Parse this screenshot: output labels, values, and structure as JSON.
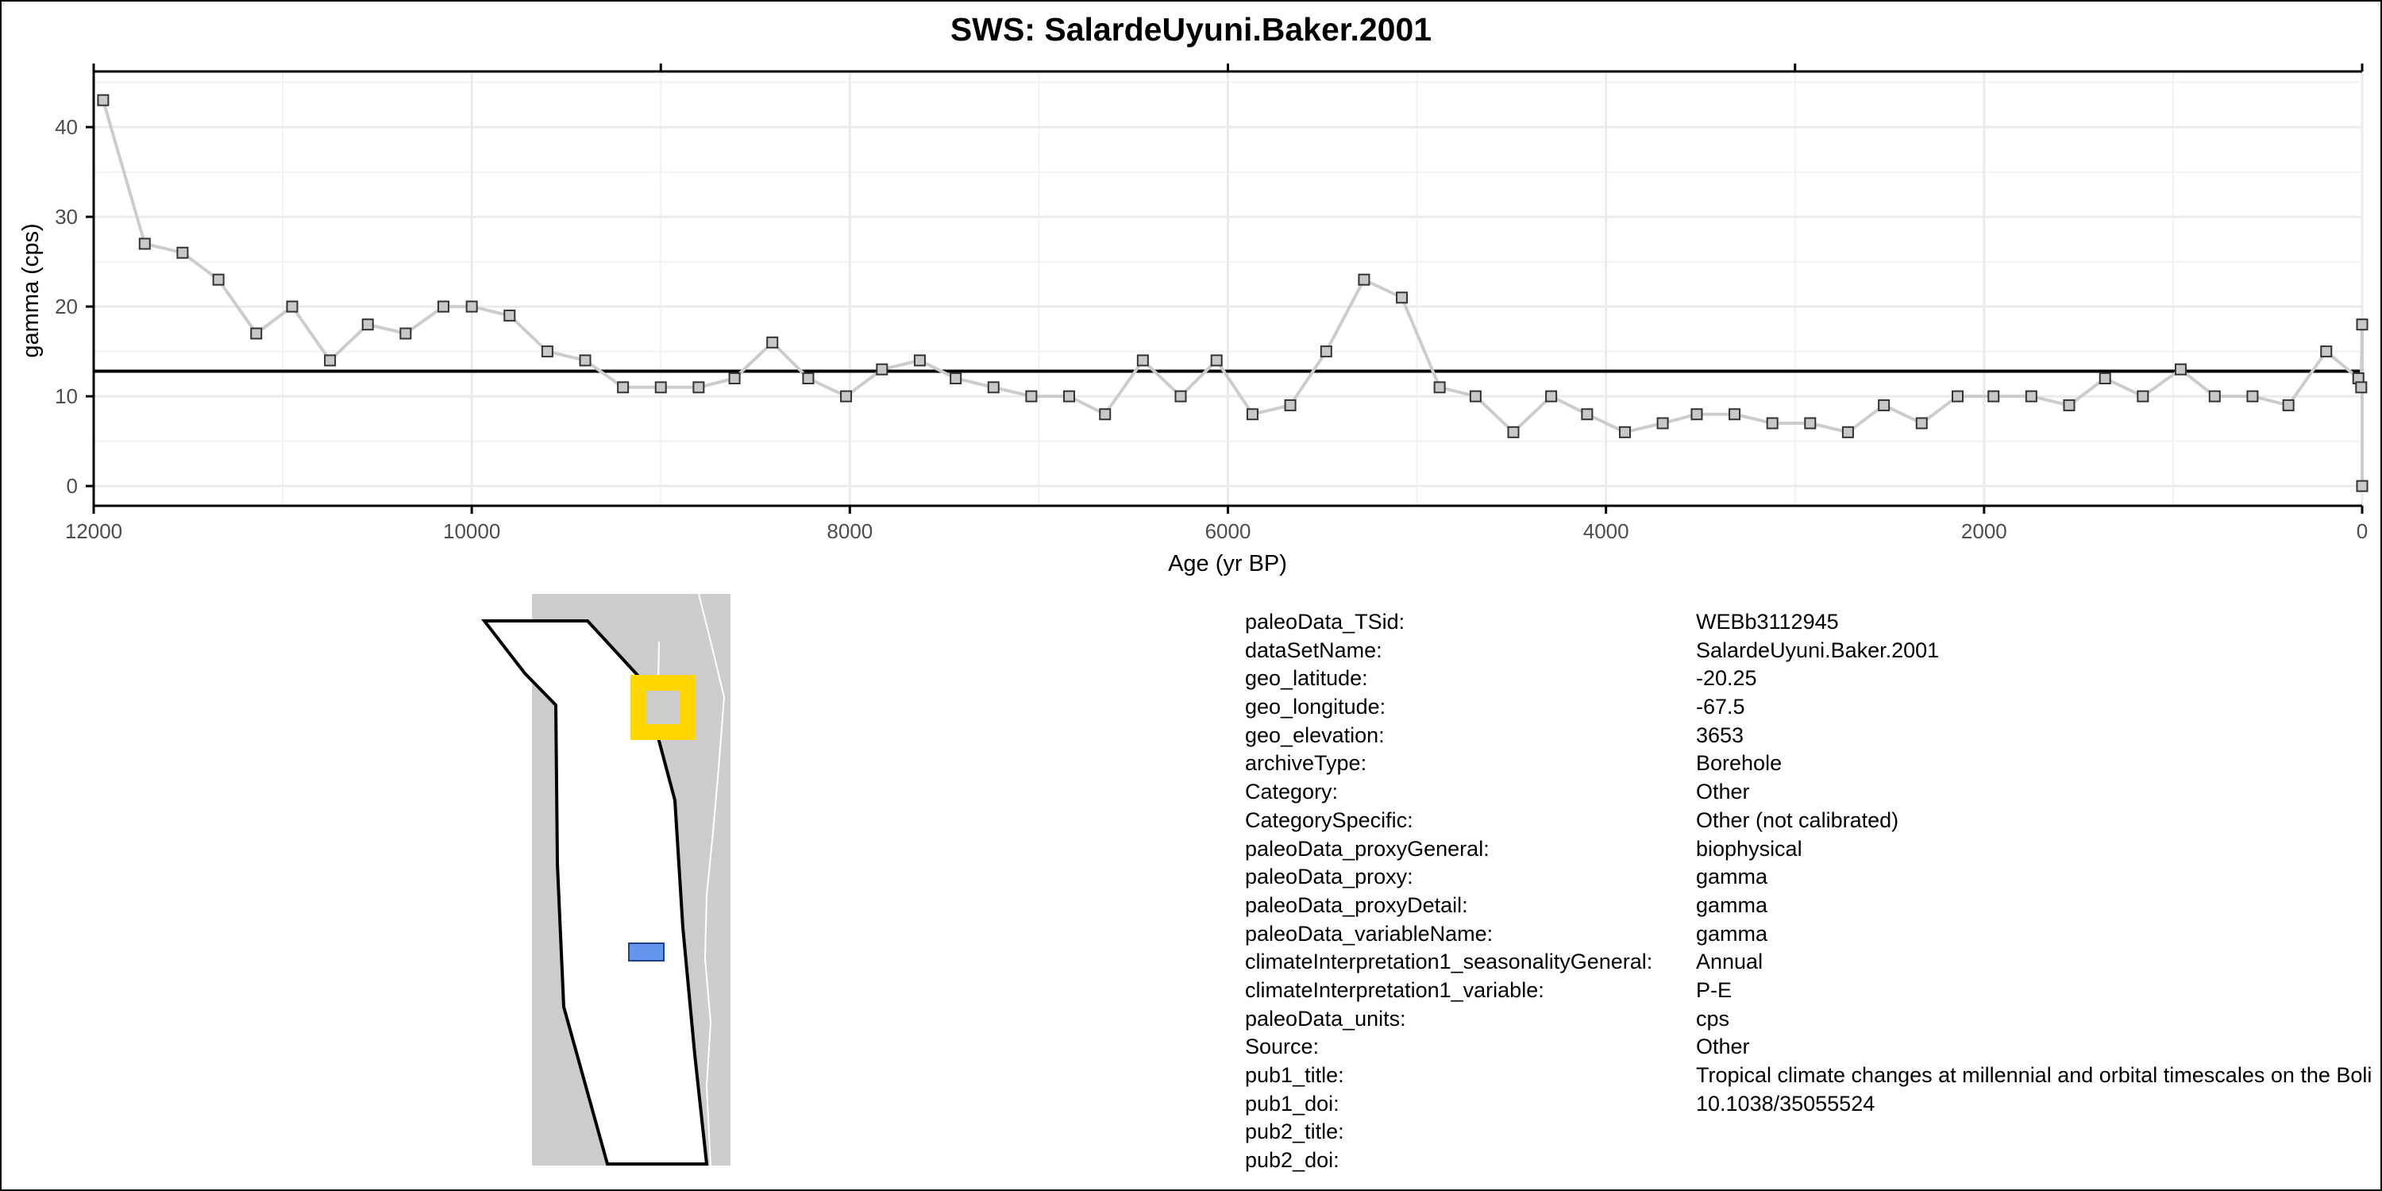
{
  "chart_data": {
    "type": "line",
    "title": "SWS: SalardeUyuni.Baker.2001",
    "xlabel": "Age (yr BP)",
    "ylabel": "gamma (cps)",
    "x_reversed": true,
    "xlim": [
      12000,
      0
    ],
    "ylim": [
      0,
      45
    ],
    "x_ticks": [
      12000,
      10000,
      8000,
      6000,
      4000,
      2000,
      0
    ],
    "x_tick_labels": [
      "12000",
      "10000",
      "8000",
      "6000",
      "4000",
      "2000",
      "0"
    ],
    "y_ticks": [
      0,
      10,
      20,
      30,
      40
    ],
    "y_tick_labels": [
      "0",
      "10",
      "20",
      "30",
      "40"
    ],
    "grid": true,
    "reference_line": 12.8,
    "series": [
      {
        "color": "#cccccc",
        "marker": "square",
        "points": [
          [
            11950,
            43
          ],
          [
            11730,
            27
          ],
          [
            11530,
            26
          ],
          [
            11340,
            23
          ],
          [
            11140,
            17
          ],
          [
            10950,
            20
          ],
          [
            10750,
            14
          ],
          [
            10550,
            18
          ],
          [
            10350,
            17
          ],
          [
            10150,
            20
          ],
          [
            10000,
            20
          ],
          [
            9800,
            19
          ],
          [
            9600,
            15
          ],
          [
            9400,
            14
          ],
          [
            9200,
            11
          ],
          [
            9000,
            11
          ],
          [
            8800,
            11
          ],
          [
            8610,
            12
          ],
          [
            8410,
            16
          ],
          [
            8220,
            12
          ],
          [
            8020,
            10
          ],
          [
            7830,
            13
          ],
          [
            7630,
            14
          ],
          [
            7440,
            12
          ],
          [
            7240,
            11
          ],
          [
            7040,
            10
          ],
          [
            6840,
            10
          ],
          [
            6650,
            8
          ],
          [
            6450,
            14
          ],
          [
            6250,
            10
          ],
          [
            6060,
            14
          ],
          [
            5870,
            8
          ],
          [
            5670,
            9
          ],
          [
            5480,
            15
          ],
          [
            5280,
            23
          ],
          [
            5080,
            21
          ],
          [
            4880,
            11
          ],
          [
            4690,
            10
          ],
          [
            4490,
            6
          ],
          [
            4290,
            10
          ],
          [
            4100,
            8
          ],
          [
            3900,
            6
          ],
          [
            3700,
            7
          ],
          [
            3520,
            8
          ],
          [
            3320,
            8
          ],
          [
            3120,
            7
          ],
          [
            2920,
            7
          ],
          [
            2720,
            6
          ],
          [
            2530,
            9
          ],
          [
            2330,
            7
          ],
          [
            2140,
            10
          ],
          [
            1950,
            10
          ],
          [
            1750,
            10
          ],
          [
            1550,
            9
          ],
          [
            1360,
            12
          ],
          [
            1160,
            10
          ],
          [
            960,
            13
          ],
          [
            780,
            10
          ],
          [
            580,
            10
          ],
          [
            390,
            9
          ],
          [
            190,
            15
          ],
          [
            20,
            12
          ],
          [
            5,
            11
          ],
          [
            0,
            18
          ],
          [
            0,
            0
          ]
        ]
      }
    ]
  },
  "metadata": [
    {
      "key": "paleoData_TSid:",
      "value": "WEBb3112945"
    },
    {
      "key": "dataSetName:",
      "value": "SalardeUyuni.Baker.2001"
    },
    {
      "key": "geo_latitude:",
      "value": "-20.25"
    },
    {
      "key": "geo_longitude:",
      "value": "-67.5"
    },
    {
      "key": "geo_elevation:",
      "value": "3653"
    },
    {
      "key": "archiveType:",
      "value": "Borehole"
    },
    {
      "key": "Category:",
      "value": "Other"
    },
    {
      "key": "CategorySpecific:",
      "value": "Other (not calibrated)"
    },
    {
      "key": "paleoData_proxyGeneral:",
      "value": "biophysical"
    },
    {
      "key": "paleoData_proxy:",
      "value": "gamma"
    },
    {
      "key": "paleoData_proxyDetail:",
      "value": "gamma"
    },
    {
      "key": "paleoData_variableName:",
      "value": "gamma"
    },
    {
      "key": "climateInterpretation1_seasonalityGeneral:",
      "value": "Annual"
    },
    {
      "key": "climateInterpretation1_variable:",
      "value": "P-E"
    },
    {
      "key": "paleoData_units:",
      "value": "cps"
    },
    {
      "key": "Source:",
      "value": "Other"
    },
    {
      "key": "pub1_title:",
      "value": "Tropical climate changes at millennial and orbital timescales on the Bolivian Altiplano"
    },
    {
      "key": "pub1_doi:",
      "value": "10.1038/35055524"
    },
    {
      "key": "pub2_title:",
      "value": ""
    },
    {
      "key": "pub2_doi:",
      "value": ""
    }
  ],
  "map": {
    "land_color": "#cccccc",
    "site_marker_color": "#ffd700",
    "region_marker_color": "#6495ed"
  }
}
